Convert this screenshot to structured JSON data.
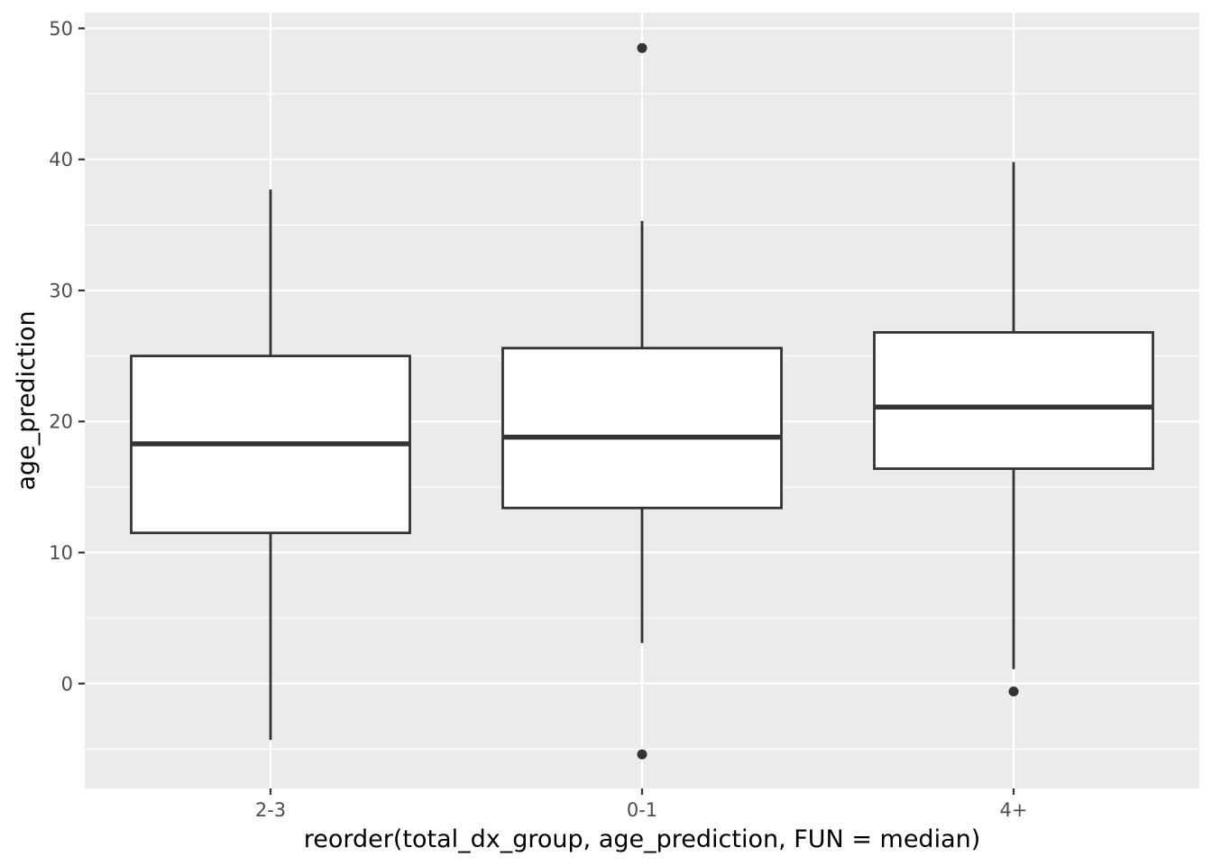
{
  "chart_data": {
    "type": "box",
    "title": "",
    "xlabel": "reorder(total_dx_group, age_prediction, FUN = median)",
    "ylabel": "age_prediction",
    "ylim": [
      -8,
      51.2
    ],
    "y_ticks": [
      0,
      10,
      20,
      30,
      40,
      50
    ],
    "y_tick_labels": [
      "0",
      "10",
      "20",
      "30",
      "40",
      "50"
    ],
    "grid": true,
    "legend": "none",
    "categories": [
      "2-3",
      "0-1",
      "4+"
    ],
    "boxes": [
      {
        "category": "2-3",
        "whisker_low": -4.3,
        "q1": 11.5,
        "median": 18.3,
        "q3": 25.0,
        "whisker_high": 37.7,
        "outliers": []
      },
      {
        "category": "0-1",
        "whisker_low": 3.1,
        "q1": 13.4,
        "median": 18.8,
        "q3": 25.6,
        "whisker_high": 35.3,
        "outliers": [
          48.5,
          -5.4
        ]
      },
      {
        "category": "4+",
        "whisker_low": 1.1,
        "q1": 16.4,
        "median": 21.1,
        "q3": 26.8,
        "whisker_high": 39.8,
        "outliers": [
          -0.6
        ]
      }
    ],
    "colors": {
      "panel_background": "#ebebeb",
      "grid_major": "#ffffff",
      "grid_minor": "#f5f5f5",
      "box_fill": "#ffffff",
      "box_line": "#333333",
      "tick_text": "#4d4d4d",
      "axis_title": "#000000"
    }
  }
}
